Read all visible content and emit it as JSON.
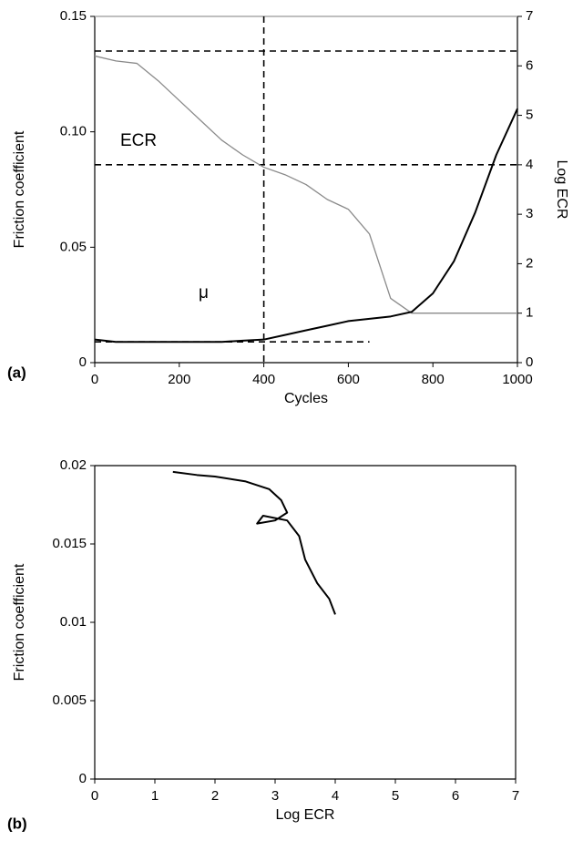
{
  "chart_data": [
    {
      "type": "line",
      "panel_label": "(a)",
      "x_label": "Cycles",
      "y_label": "Friction coefficient",
      "y2_label": "Log ECR",
      "xlim": [
        0,
        1000
      ],
      "xticks": [
        0,
        200,
        400,
        600,
        800,
        1000
      ],
      "ylim": [
        0,
        0.15
      ],
      "yticks": [
        0,
        0.05,
        {
          "value": 0.1,
          "label": "0.10"
        },
        0.15
      ],
      "y2lim": [
        0,
        7
      ],
      "y2ticks": [
        0,
        1,
        2,
        3,
        4,
        5,
        6,
        7
      ],
      "x": [
        0,
        50,
        100,
        150,
        200,
        250,
        300,
        350,
        400,
        450,
        500,
        550,
        600,
        650,
        700,
        750,
        800,
        850,
        900,
        950,
        1000
      ],
      "series": [
        {
          "name": "ECR",
          "color": "#8a8a8a",
          "axis": "y2",
          "values": [
            6.2,
            6.1,
            6.05,
            5.7,
            5.3,
            4.9,
            4.5,
            4.2,
            3.95,
            3.8,
            3.6,
            3.3,
            3.1,
            2.6,
            1.3,
            1.0,
            1.0,
            1.0,
            1.0,
            1.0,
            1.0
          ]
        },
        {
          "name": "μ",
          "color": "#000000",
          "values": [
            0.01,
            0.009,
            0.009,
            0.009,
            0.009,
            0.009,
            0.009,
            0.0095,
            0.01,
            0.012,
            0.014,
            0.016,
            0.018,
            0.019,
            0.02,
            0.022,
            0.03,
            0.044,
            0.065,
            0.09,
            0.11
          ]
        }
      ],
      "reference_lines": [
        {
          "axis": "y2",
          "value": 6.3
        },
        {
          "axis": "y2",
          "value": 4
        },
        {
          "axis": "x",
          "value": 400
        },
        {
          "axis": "y",
          "value": 0.009,
          "x_end": 650
        }
      ]
    },
    {
      "type": "line",
      "panel_label": "(b)",
      "x_label": "Log ECR",
      "y_label": "Friction coefficient",
      "xlim": [
        0,
        7
      ],
      "xticks": [
        0,
        1,
        2,
        3,
        4,
        5,
        6,
        7
      ],
      "ylim": [
        0,
        0.02
      ],
      "yticks": [
        0,
        0.005,
        0.01,
        0.015,
        0.02
      ],
      "x": [
        1.3,
        1.7,
        2.0,
        2.5,
        2.9,
        3.1,
        3.2,
        3.0,
        2.7,
        2.8,
        3.2,
        3.4,
        3.5,
        3.7,
        3.9,
        4.0
      ],
      "series": [
        {
          "color": "#000000",
          "values": [
            0.0196,
            0.0194,
            0.0193,
            0.019,
            0.0185,
            0.0178,
            0.017,
            0.0165,
            0.0163,
            0.0168,
            0.0165,
            0.0155,
            0.014,
            0.0125,
            0.0115,
            0.0105
          ]
        }
      ]
    }
  ]
}
